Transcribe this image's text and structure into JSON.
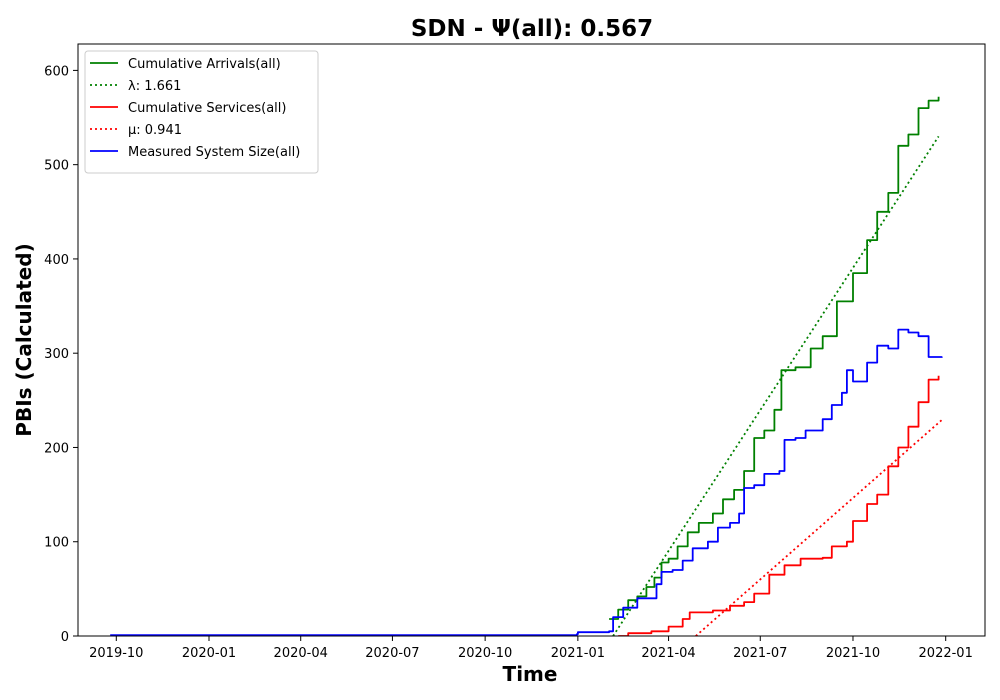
{
  "chart_data": {
    "type": "line",
    "title": "SDN -  Ψ(all): 0.567",
    "xlabel": "Time",
    "ylabel": "PBIs (Calculated)",
    "xlim": [
      "2019-08-24",
      "2022-02-09"
    ],
    "ylim": [
      0,
      628
    ],
    "x_ticks": [
      "2019-10",
      "2020-01",
      "2020-04",
      "2020-07",
      "2020-10",
      "2021-01",
      "2021-04",
      "2021-07",
      "2021-10",
      "2022-01"
    ],
    "y_ticks": [
      0,
      100,
      200,
      300,
      400,
      500,
      600
    ],
    "grid": false,
    "legend_position": "top-left",
    "series": [
      {
        "name": "Cumulative Arrivals(all)",
        "color": "#008000",
        "style": "solid",
        "points": [
          [
            "2021-02-01",
            18
          ],
          [
            "2021-02-10",
            28
          ],
          [
            "2021-02-20",
            38
          ],
          [
            "2021-03-01",
            42
          ],
          [
            "2021-03-10",
            52
          ],
          [
            "2021-03-18",
            62
          ],
          [
            "2021-03-25",
            78
          ],
          [
            "2021-04-01",
            82
          ],
          [
            "2021-04-10",
            95
          ],
          [
            "2021-04-20",
            110
          ],
          [
            "2021-05-01",
            120
          ],
          [
            "2021-05-15",
            130
          ],
          [
            "2021-05-25",
            145
          ],
          [
            "2021-06-05",
            155
          ],
          [
            "2021-06-15",
            175
          ],
          [
            "2021-06-25",
            210
          ],
          [
            "2021-07-05",
            218
          ],
          [
            "2021-07-15",
            240
          ],
          [
            "2021-07-22",
            282
          ],
          [
            "2021-08-05",
            285
          ],
          [
            "2021-08-20",
            305
          ],
          [
            "2021-09-01",
            318
          ],
          [
            "2021-09-15",
            355
          ],
          [
            "2021-10-01",
            385
          ],
          [
            "2021-10-15",
            420
          ],
          [
            "2021-10-25",
            450
          ],
          [
            "2021-11-05",
            470
          ],
          [
            "2021-11-15",
            520
          ],
          [
            "2021-11-25",
            532
          ],
          [
            "2021-12-05",
            560
          ],
          [
            "2021-12-15",
            568
          ],
          [
            "2021-12-25",
            572
          ]
        ]
      },
      {
        "name": "λ: 1.661",
        "color": "#008000",
        "style": "dotted",
        "points": [
          [
            "2021-02-05",
            0
          ],
          [
            "2021-12-25",
            530
          ]
        ]
      },
      {
        "name": "Cumulative Services(all)",
        "color": "#ff0000",
        "style": "solid",
        "points": [
          [
            "2021-02-10",
            0
          ],
          [
            "2021-02-20",
            3
          ],
          [
            "2021-03-15",
            5
          ],
          [
            "2021-04-01",
            10
          ],
          [
            "2021-04-15",
            18
          ],
          [
            "2021-04-22",
            25
          ],
          [
            "2021-05-15",
            27
          ],
          [
            "2021-06-01",
            32
          ],
          [
            "2021-06-15",
            36
          ],
          [
            "2021-06-25",
            45
          ],
          [
            "2021-07-10",
            65
          ],
          [
            "2021-07-25",
            75
          ],
          [
            "2021-08-10",
            82
          ],
          [
            "2021-09-01",
            83
          ],
          [
            "2021-09-10",
            95
          ],
          [
            "2021-09-25",
            100
          ],
          [
            "2021-10-01",
            122
          ],
          [
            "2021-10-15",
            140
          ],
          [
            "2021-10-25",
            150
          ],
          [
            "2021-11-05",
            180
          ],
          [
            "2021-11-15",
            200
          ],
          [
            "2021-11-25",
            222
          ],
          [
            "2021-12-05",
            248
          ],
          [
            "2021-12-15",
            272
          ],
          [
            "2021-12-25",
            276
          ]
        ]
      },
      {
        "name": "μ: 0.941",
        "color": "#ff0000",
        "style": "dotted",
        "points": [
          [
            "2021-04-28",
            0
          ],
          [
            "2021-12-28",
            229
          ]
        ]
      },
      {
        "name": "Measured System Size(all)",
        "color": "#0000ff",
        "style": "solid",
        "points": [
          [
            "2019-09-25",
            1
          ],
          [
            "2020-06-01",
            1
          ],
          [
            "2020-12-31",
            2
          ],
          [
            "2021-01-01",
            4
          ],
          [
            "2021-02-01",
            5
          ],
          [
            "2021-02-05",
            20
          ],
          [
            "2021-02-15",
            30
          ],
          [
            "2021-03-01",
            40
          ],
          [
            "2021-03-20",
            55
          ],
          [
            "2021-03-25",
            68
          ],
          [
            "2021-04-05",
            70
          ],
          [
            "2021-04-15",
            80
          ],
          [
            "2021-04-25",
            93
          ],
          [
            "2021-05-10",
            100
          ],
          [
            "2021-05-20",
            115
          ],
          [
            "2021-06-01",
            120
          ],
          [
            "2021-06-10",
            130
          ],
          [
            "2021-06-15",
            157
          ],
          [
            "2021-06-25",
            160
          ],
          [
            "2021-07-05",
            172
          ],
          [
            "2021-07-20",
            175
          ],
          [
            "2021-07-25",
            208
          ],
          [
            "2021-08-05",
            210
          ],
          [
            "2021-08-15",
            218
          ],
          [
            "2021-09-01",
            230
          ],
          [
            "2021-09-10",
            245
          ],
          [
            "2021-09-20",
            258
          ],
          [
            "2021-09-25",
            282
          ],
          [
            "2021-10-01",
            270
          ],
          [
            "2021-10-15",
            290
          ],
          [
            "2021-10-25",
            308
          ],
          [
            "2021-11-05",
            305
          ],
          [
            "2021-11-15",
            325
          ],
          [
            "2021-11-25",
            322
          ],
          [
            "2021-12-05",
            318
          ],
          [
            "2021-12-15",
            296
          ],
          [
            "2021-12-28",
            295
          ]
        ]
      }
    ]
  }
}
